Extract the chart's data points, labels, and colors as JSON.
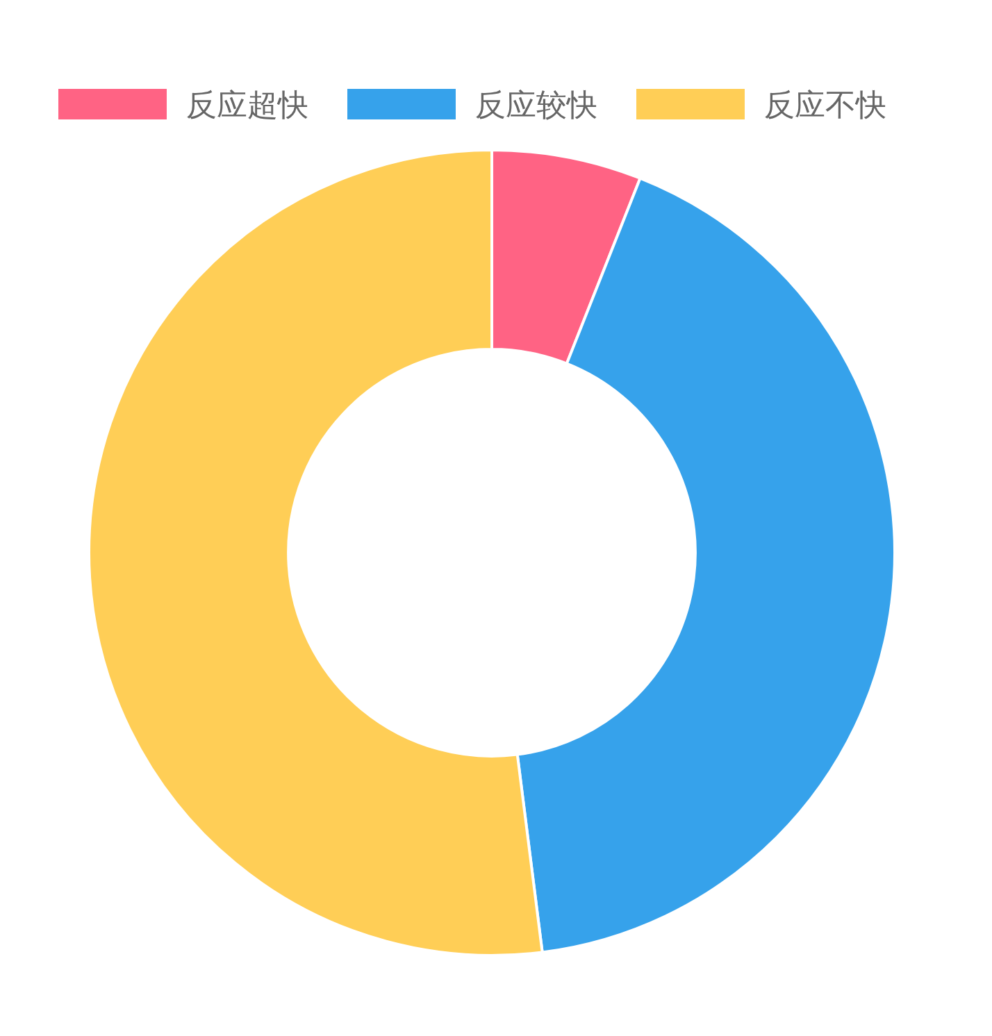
{
  "chart_data": {
    "type": "donut",
    "categories": [
      "反应超快",
      "反应较快",
      "反应不快"
    ],
    "values": [
      6,
      42,
      52
    ],
    "colors": [
      "#ff6384",
      "#36a2eb",
      "#ffce56"
    ],
    "legend": "top"
  }
}
